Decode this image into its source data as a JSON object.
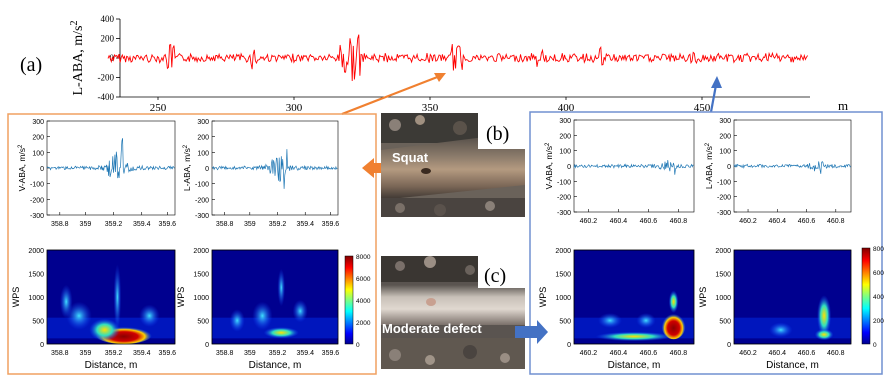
{
  "top_signal": {
    "panel_label": "(a)",
    "ylabel": "L-ABA, m/s",
    "ylabel_sup": "2",
    "yticks": [
      "400",
      "200",
      "0",
      "-200",
      "-400"
    ],
    "xticks": [
      "250",
      "300",
      "350",
      "400",
      "450"
    ],
    "xunit": "m",
    "color": "#ff0000"
  },
  "left_panel": {
    "border_color": "#f0a060",
    "v_aba": {
      "ylabel": "V-ABA, m/s",
      "yticks": [
        "300",
        "200",
        "100",
        "0",
        "-100",
        "-200",
        "-300"
      ],
      "xticks": [
        "358.8",
        "359",
        "359.2",
        "359.4",
        "359.6"
      ]
    },
    "l_aba": {
      "ylabel": "L-ABA, m/s",
      "yticks": [
        "300",
        "200",
        "100",
        "0",
        "-100",
        "-200",
        "-300"
      ],
      "xticks": [
        "358.8",
        "359",
        "359.2",
        "359.4",
        "359.6"
      ]
    },
    "wps1": {
      "ylabel": "WPS",
      "yticks": [
        "2000",
        "1500",
        "1000",
        "500",
        "0"
      ],
      "xticks": [
        "358.8",
        "359",
        "359.2",
        "359.4",
        "359.6"
      ],
      "xlabel": "Distance, m"
    },
    "wps2": {
      "ylabel": "WPS",
      "yticks": [
        "2000",
        "1500",
        "1000",
        "500",
        "0"
      ],
      "xticks": [
        "358.8",
        "359",
        "359.2",
        "359.4",
        "359.6"
      ],
      "xlabel": "Distance, m"
    },
    "colorbar": [
      "8000",
      "6000",
      "4000",
      "2000",
      "0"
    ]
  },
  "right_panel": {
    "border_color": "#7090d0",
    "v_aba": {
      "ylabel": "V-ABA, m/s",
      "yticks": [
        "300",
        "200",
        "100",
        "0",
        "-100",
        "-200",
        "-300"
      ],
      "xticks": [
        "460.2",
        "460.4",
        "460.6",
        "460.8"
      ]
    },
    "l_aba": {
      "ylabel": "L-ABA, m/s",
      "yticks": [
        "300",
        "200",
        "100",
        "0",
        "-100",
        "-200",
        "-300"
      ],
      "xticks": [
        "460.2",
        "460.4",
        "460.6",
        "460.8"
      ]
    },
    "wps1": {
      "ylabel": "WPS",
      "yticks": [
        "2000",
        "1500",
        "1000",
        "500",
        "0"
      ],
      "xticks": [
        "460.2",
        "460.4",
        "460.6",
        "460.8"
      ],
      "xlabel": "Distance, m"
    },
    "wps2": {
      "ylabel": "WPS",
      "yticks": [
        "2000",
        "1500",
        "1000",
        "500",
        "0"
      ],
      "xticks": [
        "460.2",
        "460.4",
        "460.6",
        "460.8"
      ],
      "xlabel": "Distance, m"
    },
    "colorbar": [
      "800",
      "600",
      "400",
      "200",
      "0"
    ]
  },
  "photo_b": {
    "label": "(b)",
    "caption": "Squat"
  },
  "photo_c": {
    "label": "(c)",
    "caption": "Moderate defect"
  },
  "sup2": "2",
  "colors": {
    "orange_arrow": "#f08030",
    "blue_arrow": "#4472c4",
    "signal": "#1f77b4"
  }
}
